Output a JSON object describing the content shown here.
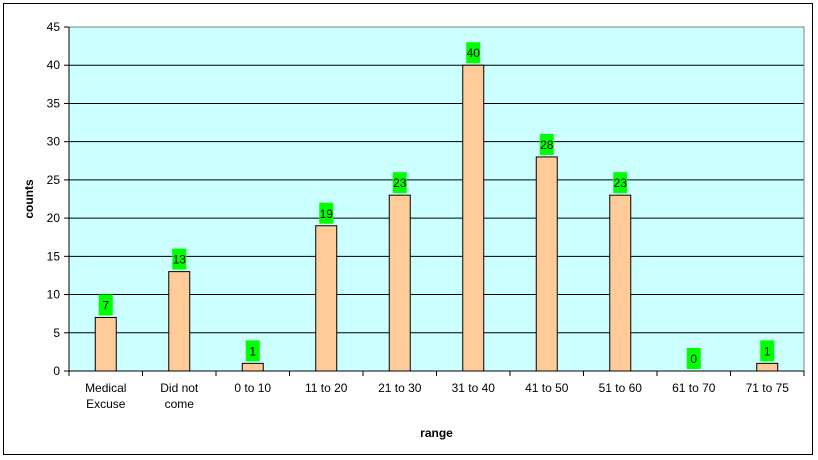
{
  "chart_data": {
    "type": "bar",
    "title": "",
    "xlabel": "range",
    "ylabel": "counts",
    "categories": [
      [
        "Medical",
        "Excuse"
      ],
      [
        "Did not",
        "come"
      ],
      [
        "0 to 10"
      ],
      [
        "11 to 20"
      ],
      [
        "21 to 30"
      ],
      [
        "31 to 40"
      ],
      [
        "41 to 50"
      ],
      [
        "51 to 60"
      ],
      [
        "61 to 70"
      ],
      [
        "71 to 75"
      ]
    ],
    "values": [
      7,
      13,
      1,
      19,
      23,
      40,
      28,
      23,
      0,
      1
    ],
    "ylim": [
      0,
      45
    ],
    "ytick_step": 5,
    "grid": true,
    "legend": "none",
    "colors": {
      "plot_background": "#ccffff",
      "bar_fill": "#ffcc99",
      "bar_stroke": "#000000",
      "label_background": "#00ff00",
      "gridline": "#000000"
    }
  }
}
